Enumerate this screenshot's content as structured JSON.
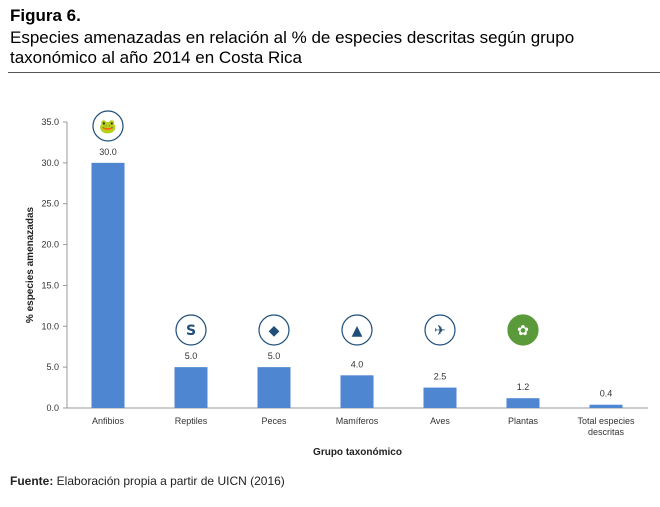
{
  "figure_label": "Figura 6.",
  "title": "Especies amenazadas en relación al % de especies descritas según grupo taxonómico al año 2014 en Costa Rica",
  "source": {
    "label": "Fuente:",
    "text": " Elaboración propia a partir de UICN (2016)"
  },
  "colors": {
    "bar": "#4f86d2",
    "icon": "#1f4e79",
    "plant_icon": "#5a9a3a"
  },
  "chart_data": {
    "type": "bar",
    "xlabel": "Grupo taxonómico",
    "ylabel": "% especies amenazadas",
    "ylim": [
      0,
      35
    ],
    "yticks": [
      "0.0",
      "5.0",
      "10.0",
      "15.0",
      "20.0",
      "25.0",
      "30.0",
      "35.0"
    ],
    "categories": [
      "Anfibios",
      "Reptiles",
      "Peces",
      "Mamíferos",
      "Aves",
      "Plantas",
      "Total especies descritas"
    ],
    "values": [
      30.0,
      5.0,
      5.0,
      4.0,
      2.5,
      1.2,
      0.4
    ],
    "labels": [
      "30.0",
      "5.0",
      "5.0",
      "4.0",
      "2.5",
      "1.2",
      "0.4"
    ],
    "icons": [
      "frog-icon",
      "snake-icon",
      "fish-icon",
      "wolf-icon",
      "bird-icon",
      "lotus-icon",
      null
    ],
    "grid": false
  }
}
